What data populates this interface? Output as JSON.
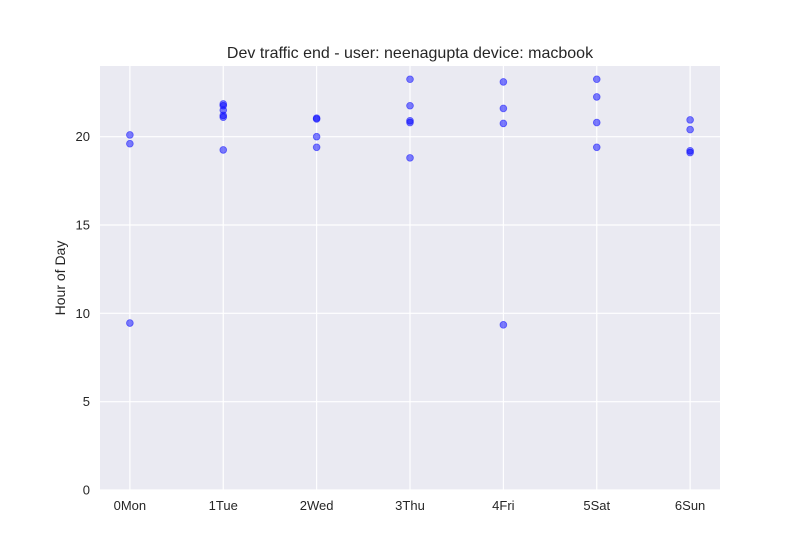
{
  "chart_data": {
    "type": "scatter",
    "title": "Dev traffic end - user: neenagupta device: macbook",
    "xlabel": "",
    "ylabel": "Hour of Day",
    "categories": [
      "0Mon",
      "1Tue",
      "2Wed",
      "3Thu",
      "4Fri",
      "5Sat",
      "6Sun"
    ],
    "xlim": [
      -0.32,
      6.32
    ],
    "ylim": [
      0,
      24
    ],
    "yticks": [
      0,
      5,
      10,
      15,
      20
    ],
    "grid": true,
    "colors": {
      "background": "#eaeaf2",
      "grid": "#ffffff",
      "marker": "#0000ff",
      "text": "#262626"
    },
    "series": [
      {
        "points": [
          {
            "x": 0,
            "y": 20.1
          },
          {
            "x": 0,
            "y": 19.6
          },
          {
            "x": 0,
            "y": 9.45
          },
          {
            "x": 1,
            "y": 21.85
          },
          {
            "x": 1,
            "y": 21.75
          },
          {
            "x": 1,
            "y": 21.5
          },
          {
            "x": 1,
            "y": 21.2
          },
          {
            "x": 1,
            "y": 21.1
          },
          {
            "x": 1,
            "y": 19.25
          },
          {
            "x": 2,
            "y": 21.05
          },
          {
            "x": 2,
            "y": 21.0
          },
          {
            "x": 2,
            "y": 20.0
          },
          {
            "x": 2,
            "y": 19.4
          },
          {
            "x": 3,
            "y": 23.25
          },
          {
            "x": 3,
            "y": 21.75
          },
          {
            "x": 3,
            "y": 20.9
          },
          {
            "x": 3,
            "y": 20.8
          },
          {
            "x": 3,
            "y": 18.8
          },
          {
            "x": 4,
            "y": 23.1
          },
          {
            "x": 4,
            "y": 21.6
          },
          {
            "x": 4,
            "y": 20.75
          },
          {
            "x": 4,
            "y": 9.35
          },
          {
            "x": 5,
            "y": 23.25
          },
          {
            "x": 5,
            "y": 22.25
          },
          {
            "x": 5,
            "y": 20.8
          },
          {
            "x": 5,
            "y": 19.4
          },
          {
            "x": 6,
            "y": 20.95
          },
          {
            "x": 6,
            "y": 20.4
          },
          {
            "x": 6,
            "y": 19.2
          },
          {
            "x": 6,
            "y": 19.1
          }
        ]
      }
    ]
  }
}
